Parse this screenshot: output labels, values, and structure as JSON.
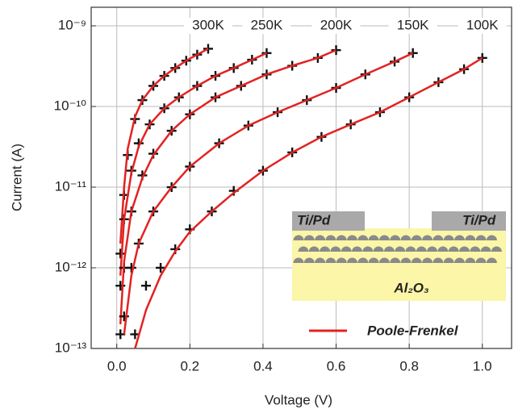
{
  "chart_data": {
    "type": "scatter",
    "xlabel": "Voltage (V)",
    "ylabel": "Current (A)",
    "xlim": [
      -0.07,
      1.08
    ],
    "ylim": [
      1e-13,
      1.7e-09
    ],
    "log_y": true,
    "grid": true,
    "xticks": [
      {
        "value": 0,
        "label": "0.0"
      },
      0.2,
      0.4,
      0.6,
      0.8,
      {
        "value": 1,
        "label": "1.0"
      }
    ],
    "yticks": [
      {
        "value": 1e-13,
        "label": "10⁻¹³"
      },
      {
        "value": 1e-12,
        "label": "10⁻¹²"
      },
      {
        "value": 1e-11,
        "label": "10⁻¹¹"
      },
      {
        "value": 1e-10,
        "label": "10⁻¹⁰"
      },
      {
        "value": 1e-09,
        "label": "10⁻⁹"
      }
    ],
    "marker_color": "#111111",
    "fit_color": "#e32222",
    "fit_name": "Poole-Frenkel",
    "legend": "lower right",
    "series": [
      {
        "name": "300K",
        "x": [
          0.01,
          0.02,
          0.03,
          0.05,
          0.07,
          0.1,
          0.13,
          0.16,
          0.19,
          0.22,
          0.25
        ],
        "values": [
          1.5e-12,
          8e-12,
          2.5e-11,
          7e-11,
          1.2e-10,
          1.8e-10,
          2.4e-10,
          3e-10,
          3.7e-10,
          4.4e-10,
          5.2e-10
        ],
        "fit": [
          2e-12,
          1e-11,
          3e-11,
          7.5e-11,
          1.2e-10,
          1.8e-10,
          2.4e-10,
          3e-10,
          3.7e-10,
          4.4e-10,
          5.2e-10
        ]
      },
      {
        "name": "250K",
        "x": [
          0.01,
          0.02,
          0.04,
          0.06,
          0.09,
          0.13,
          0.17,
          0.22,
          0.27,
          0.32,
          0.37,
          0.41
        ],
        "values": [
          6e-13,
          4e-12,
          1.6e-11,
          3.5e-11,
          6e-11,
          9.5e-11,
          1.3e-10,
          1.8e-10,
          2.4e-10,
          3e-10,
          3.8e-10,
          4.6e-10
        ],
        "fit": [
          8e-13,
          4e-12,
          1.5e-11,
          3.2e-11,
          6e-11,
          9.5e-11,
          1.3e-10,
          1.8e-10,
          2.4e-10,
          3e-10,
          3.8e-10,
          4.6e-10
        ]
      },
      {
        "name": "200K",
        "x": [
          0.01,
          0.02,
          0.04,
          0.07,
          0.1,
          0.15,
          0.2,
          0.27,
          0.34,
          0.41,
          0.48,
          0.55,
          0.6
        ],
        "values": [
          1.5e-13,
          1e-12,
          5e-12,
          1.4e-11,
          2.6e-11,
          5e-11,
          8e-11,
          1.3e-10,
          1.8e-10,
          2.5e-10,
          3.2e-10,
          4e-10,
          5e-10
        ],
        "fit": [
          2e-13,
          1.2e-12,
          5e-12,
          1.3e-11,
          2.5e-11,
          5e-11,
          8e-11,
          1.3e-10,
          1.8e-10,
          2.5e-10,
          3.2e-10,
          4e-10,
          5e-10
        ]
      },
      {
        "name": "150K",
        "x": [
          0.02,
          0.04,
          0.06,
          0.1,
          0.15,
          0.2,
          0.28,
          0.36,
          0.44,
          0.52,
          0.6,
          0.68,
          0.76,
          0.81
        ],
        "values": [
          2.5e-13,
          1e-12,
          2e-12,
          5e-12,
          1e-11,
          1.8e-11,
          3.5e-11,
          5.8e-11,
          8.5e-11,
          1.2e-10,
          1.7e-10,
          2.5e-10,
          3.6e-10,
          4.6e-10
        ],
        "fit": [
          1.5e-13,
          8e-13,
          2e-12,
          5e-12,
          1e-11,
          1.8e-11,
          3.5e-11,
          5.8e-11,
          8.5e-11,
          1.2e-10,
          1.7e-10,
          2.5e-10,
          3.6e-10,
          4.6e-10
        ]
      },
      {
        "name": "100K",
        "x": [
          0.05,
          0.08,
          0.12,
          0.16,
          0.2,
          0.26,
          0.32,
          0.4,
          0.48,
          0.56,
          0.64,
          0.72,
          0.8,
          0.88,
          0.95,
          1.0
        ],
        "values": [
          1.5e-13,
          6e-13,
          1e-12,
          1.7e-12,
          3e-12,
          5e-12,
          9e-12,
          1.6e-11,
          2.7e-11,
          4.2e-11,
          6e-11,
          8.5e-11,
          1.3e-10,
          2e-10,
          2.9e-10,
          4e-10
        ],
        "fit": [
          1e-13,
          3e-13,
          8e-13,
          1.6e-12,
          2.8e-12,
          5e-12,
          8.5e-12,
          1.6e-11,
          2.7e-11,
          4.2e-11,
          6e-11,
          8.5e-11,
          1.3e-10,
          2e-10,
          2.9e-10,
          4e-10
        ]
      }
    ],
    "inset": {
      "left_electrode": "Ti/Pd",
      "right_electrode": "Ti/Pd",
      "substrate": "Al₂O₃"
    }
  }
}
